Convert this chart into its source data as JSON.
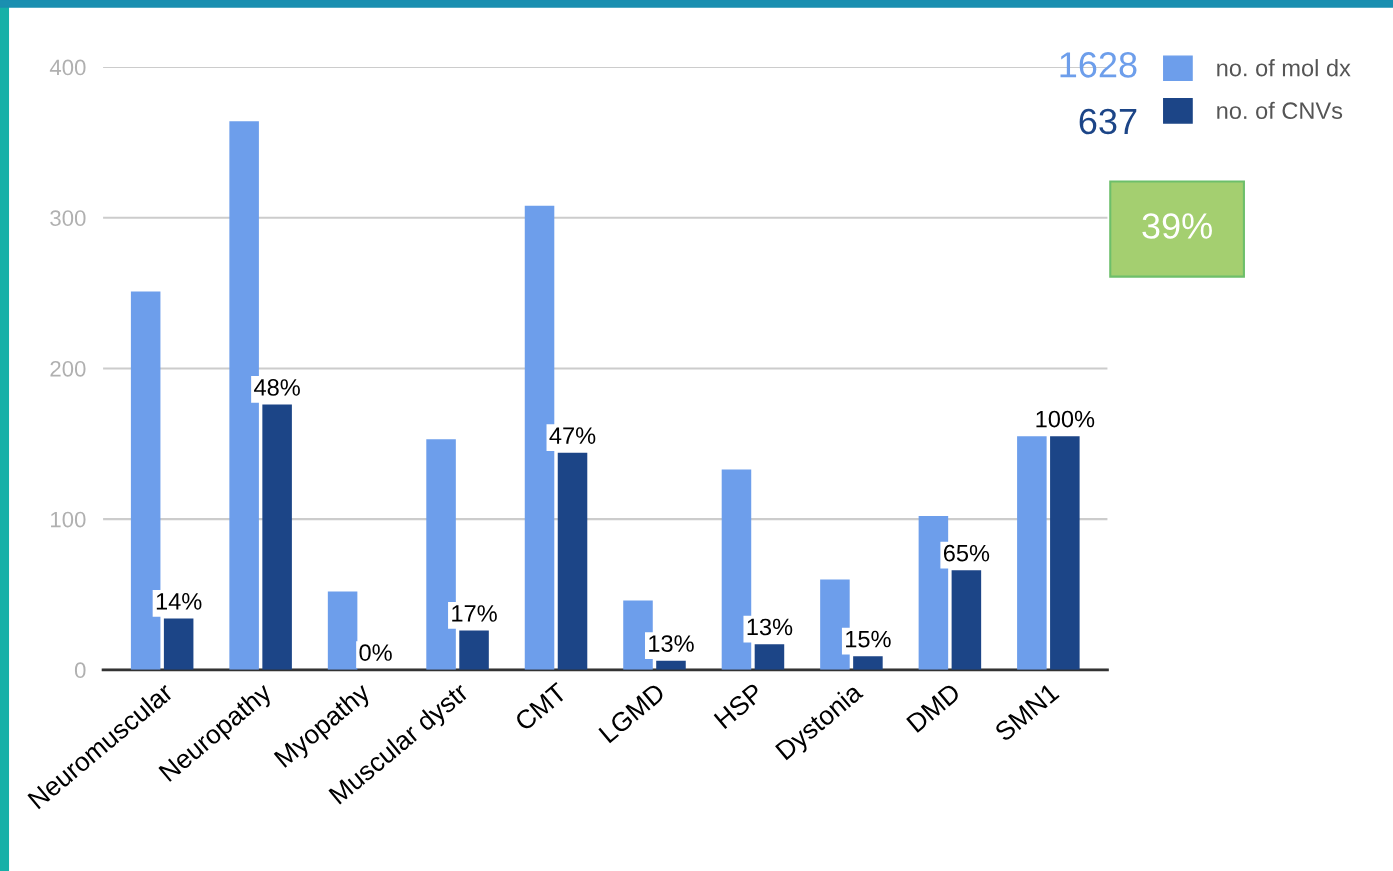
{
  "chart_data": {
    "type": "bar",
    "categories": [
      "Neuromuscular",
      "Neuropathy",
      "Myopathy",
      "Muscular dystr",
      "CMT",
      "LGMD",
      "HSP",
      "Dystonia",
      "DMD",
      "SMN1"
    ],
    "series": [
      {
        "name": "no. of mol dx",
        "color": "#6d9eeb",
        "values": [
          251,
          364,
          52,
          153,
          308,
          46,
          133,
          60,
          102,
          155
        ]
      },
      {
        "name": "no. of CNVs",
        "color": "#1c4587",
        "values": [
          34,
          176,
          0,
          26,
          144,
          6,
          17,
          9,
          66,
          155
        ]
      }
    ],
    "ylim": [
      0,
      400
    ],
    "yticks": [
      0,
      100,
      200,
      300,
      400
    ],
    "grid": "y",
    "legend": "top right",
    "annotations": [
      "1628",
      "637",
      "39%",
      {
        "text": "14%",
        "x": "Neuromuscular",
        "y": 34
      },
      {
        "text": "48%",
        "x": "Neuropathy",
        "y": 176
      },
      {
        "text": "0%",
        "x": "Myopathy",
        "y": 0
      },
      {
        "text": "17%",
        "x": "Muscular dystr",
        "y": 26
      },
      {
        "text": "47%",
        "x": "CMT",
        "y": 144
      },
      {
        "text": "13%",
        "x": "LGMD",
        "y": 6
      },
      {
        "text": "13%",
        "x": "HSP",
        "y": 17
      },
      {
        "text": "15%",
        "x": "Dystonia",
        "y": 9
      },
      {
        "text": "65%",
        "x": "DMD",
        "y": 66
      },
      {
        "text": "100%",
        "x": "SMN1",
        "y": 155
      }
    ]
  }
}
